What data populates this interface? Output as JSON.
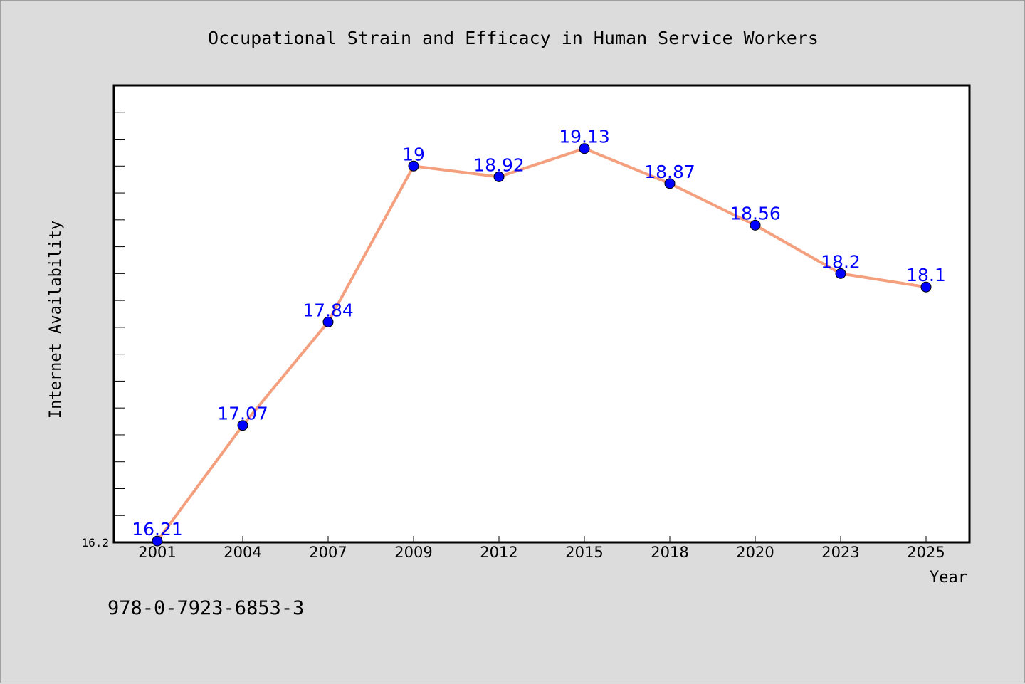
{
  "title": "Occupational Strain and Efficacy in Human Service Workers",
  "isbn": "978-0-7923-6853-3",
  "colors": {
    "background": "#dcdcdc",
    "plot_background": "#ffffff",
    "line": "#f4a07e",
    "marker": "#0000ff",
    "data_label": "#0000ff"
  },
  "chart_data": {
    "type": "line",
    "title": "Occupational Strain and Efficacy in Human Service Workers",
    "xlabel": "Year",
    "ylabel": "Internet Availability",
    "categories": [
      "2001",
      "2004",
      "2007",
      "2009",
      "2012",
      "2015",
      "2018",
      "2020",
      "2023",
      "2025"
    ],
    "values": [
      16.21,
      17.07,
      17.84,
      19,
      18.92,
      19.13,
      18.87,
      18.56,
      18.2,
      18.1
    ],
    "data_labels": [
      "16.21",
      "17.07",
      "17.84",
      "19",
      "18.92",
      "19.13",
      "18.87",
      "18.56",
      "18.2",
      "18.1"
    ],
    "ylim": [
      16.2,
      19.6
    ],
    "y_tick_labels": [
      "16.2"
    ],
    "grid": false,
    "legend": "none"
  }
}
